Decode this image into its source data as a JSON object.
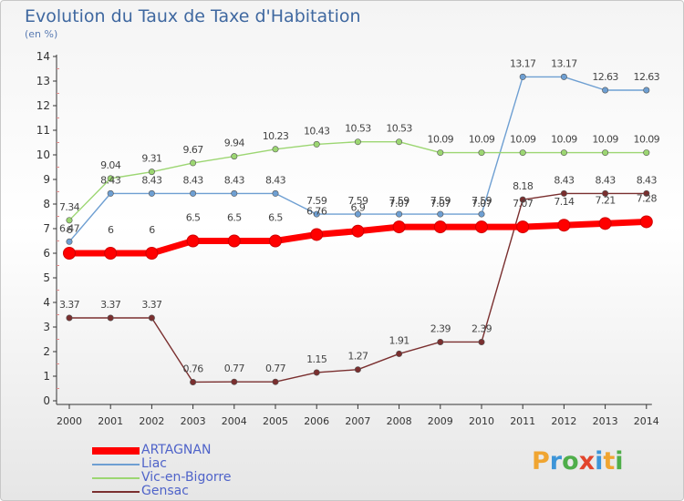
{
  "title": "Evolution du Taux de Taxe d'Habitation",
  "unit_label": "(en %)",
  "logo_text": "Proxiti",
  "chart_data": {
    "type": "line",
    "x": [
      "2000",
      "2001",
      "2002",
      "2003",
      "2004",
      "2005",
      "2006",
      "2007",
      "2008",
      "2009",
      "2010",
      "2011",
      "2012",
      "2013",
      "2014"
    ],
    "ylim": [
      0,
      14
    ],
    "yticks": [
      "0",
      "1",
      "2",
      "3",
      "4",
      "5",
      "6",
      "7",
      "8",
      "9",
      "10",
      "11",
      "12",
      "13",
      "14"
    ],
    "grid": false,
    "legend_position": "bottom-left",
    "series": [
      {
        "name": "ARTAGNAN",
        "color": "#ff0000",
        "values": [
          6,
          6,
          6,
          6.5,
          6.5,
          6.5,
          6.76,
          6.9,
          7.07,
          7.07,
          7.07,
          7.07,
          7.14,
          7.21,
          7.28
        ],
        "labels": [
          "6",
          "6",
          "6",
          "6.5",
          "6.5",
          "6.5",
          "6.76",
          "6.9",
          "7.07",
          "7.07",
          "7.07",
          "7.07",
          "7.14",
          "7.21",
          "7.28"
        ]
      },
      {
        "name": "Liac",
        "color": "#6e9fd2",
        "values": [
          6.47,
          8.43,
          8.43,
          8.43,
          8.43,
          8.43,
          7.59,
          7.59,
          7.59,
          7.59,
          7.59,
          13.17,
          13.17,
          12.63,
          12.63
        ],
        "labels": [
          "6.47",
          "8.43",
          "8.43",
          "8.43",
          "8.43",
          "8.43",
          "7.59",
          "7.59",
          "7.59",
          "7.59",
          "7.59",
          "13.17",
          "13.17",
          "12.63",
          "12.63"
        ]
      },
      {
        "name": "Vic-en-Bigorre",
        "color": "#9cd672",
        "values": [
          7.34,
          9.04,
          9.31,
          9.67,
          9.94,
          10.23,
          10.43,
          10.53,
          10.53,
          10.09,
          10.09,
          10.09,
          10.09,
          10.09,
          10.09
        ],
        "labels": [
          "7.34",
          "9.04",
          "9.31",
          "9.67",
          "9.94",
          "10.23",
          "10.43",
          "10.53",
          "10.53",
          "10.09",
          "10.09",
          "10.09",
          "10.09",
          "10.09",
          "10.09"
        ]
      },
      {
        "name": "Gensac",
        "color": "#7a2f2f",
        "values": [
          3.37,
          3.37,
          3.37,
          0.76,
          0.77,
          0.77,
          1.15,
          1.27,
          1.91,
          2.39,
          2.39,
          8.18,
          8.43,
          8.43,
          8.43
        ],
        "labels": [
          "3.37",
          "3.37",
          "3.37",
          "0.76",
          "0.77",
          "0.77",
          "1.15",
          "1.27",
          "1.91",
          "2.39",
          "2.39",
          "8.18",
          "8.43",
          "8.43",
          "8.43"
        ]
      }
    ]
  }
}
